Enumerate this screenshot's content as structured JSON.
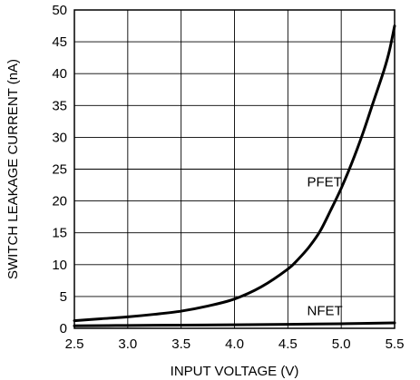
{
  "chart_data": {
    "type": "line",
    "title": "",
    "xlabel": "INPUT VOLTAGE (V)",
    "ylabel": "SWITCH LEAKAGE CURRENT (nA)",
    "xlim": [
      2.5,
      5.5
    ],
    "ylim": [
      0,
      50
    ],
    "x_ticks": [
      "2.5",
      "3.0",
      "3.5",
      "4.0",
      "4.5",
      "5.0",
      "5.5"
    ],
    "y_ticks": [
      "0",
      "5",
      "10",
      "15",
      "20",
      "25",
      "30",
      "35",
      "40",
      "45",
      "50"
    ],
    "grid": true,
    "legend": "none",
    "series": [
      {
        "name": "PFET",
        "color": "#000000",
        "label_at": [
          4.68,
          22.3
        ],
        "x": [
          2.5,
          2.75,
          3.0,
          3.25,
          3.5,
          3.75,
          4.0,
          4.25,
          4.5,
          4.6,
          4.7,
          4.8,
          4.9,
          5.0,
          5.1,
          5.2,
          5.3,
          5.4,
          5.45,
          5.5
        ],
        "y": [
          1.2,
          1.5,
          1.8,
          2.2,
          2.7,
          3.5,
          4.6,
          6.5,
          9.3,
          10.9,
          12.8,
          15.2,
          18.5,
          22.0,
          26.0,
          30.5,
          35.5,
          40.5,
          43.5,
          47.5
        ]
      },
      {
        "name": "NFET",
        "color": "#000000",
        "label_at": [
          4.68,
          2.1
        ],
        "x": [
          2.5,
          3.0,
          3.5,
          4.0,
          4.5,
          5.0,
          5.5
        ],
        "y": [
          0.4,
          0.45,
          0.5,
          0.55,
          0.62,
          0.72,
          0.85
        ]
      }
    ]
  }
}
